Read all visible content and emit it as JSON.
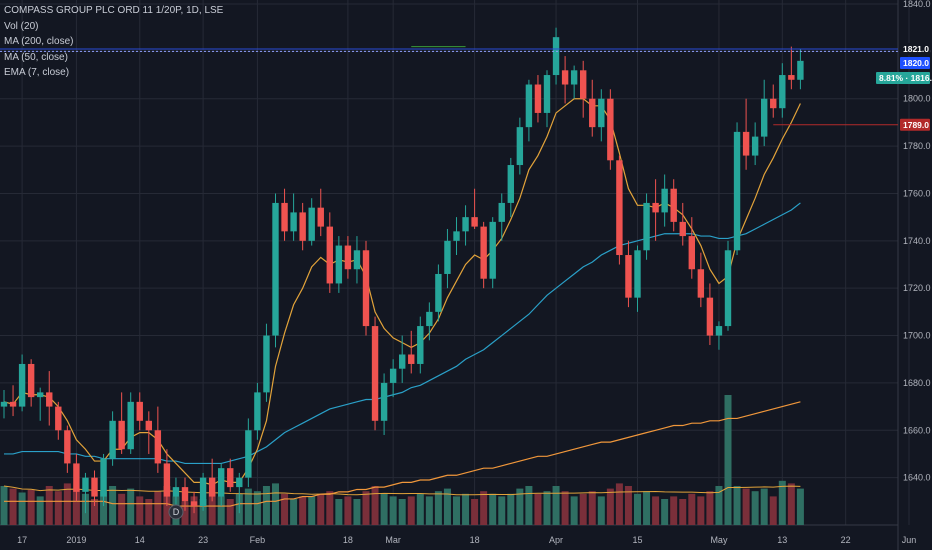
{
  "legend": {
    "title": "COMPASS GROUP PLC ORD 11 1/20P, 1D, LSE",
    "vol": "Vol (20)",
    "ma200": "MA (200, close)",
    "ma50": "MA (50, close)",
    "ema7": "EMA (7, close)"
  },
  "colors": {
    "background": "#131722",
    "grid": "#262a36",
    "up": "#26a69a",
    "down": "#ef5350",
    "vol_up": "#2f6f63",
    "vol_down": "#7a2f3a",
    "ma200": "#f0973b",
    "ma50": "#2aa0c8",
    "ema7": "#e2a33a",
    "vol_ma": "#e2a33a"
  },
  "price_tags": [
    {
      "label": "1821.0",
      "value": 1821.0,
      "color": "#131722",
      "line": "#2a4bd7"
    },
    {
      "label": "1820.0",
      "value": 1820.0,
      "color": "#1e50ff",
      "line": "#8fa0ff"
    },
    {
      "label": "8.81% · 1816.0",
      "value": 1816.0,
      "color": "#26a69a",
      "line": null
    },
    {
      "label": "1789.0",
      "value": 1789.0,
      "color": "#b22a2a",
      "line": "#b22a2a"
    }
  ],
  "dividend_marker": "D",
  "chart_data": {
    "type": "candlestick",
    "title": "COMPASS GROUP PLC ORD 11 1/20P, 1D, LSE",
    "yticks": [
      1640.0,
      1660.0,
      1680.0,
      1700.0,
      1720.0,
      1740.0,
      1760.0,
      1780.0,
      1800.0,
      1820.0,
      1840.0
    ],
    "ylim": [
      1620,
      1840
    ],
    "x_tick_labels": [
      {
        "label": "17",
        "index": 2
      },
      {
        "label": "2019",
        "index": 8
      },
      {
        "label": "14",
        "index": 15
      },
      {
        "label": "23",
        "index": 22
      },
      {
        "label": "Feb",
        "index": 28
      },
      {
        "label": "18",
        "index": 38
      },
      {
        "label": "Mar",
        "index": 43
      },
      {
        "label": "18",
        "index": 52
      },
      {
        "label": "Apr",
        "index": 61
      },
      {
        "label": "15",
        "index": 70
      },
      {
        "label": "May",
        "index": 79
      },
      {
        "label": "13",
        "index": 86
      },
      {
        "label": "22",
        "index": 93
      },
      {
        "label": "Jun",
        "index": 100
      }
    ],
    "candles": [
      [
        1670,
        1677,
        1665,
        1672
      ],
      [
        1672,
        1679,
        1666,
        1670
      ],
      [
        1670,
        1692,
        1668,
        1688
      ],
      [
        1688,
        1690,
        1670,
        1674
      ],
      [
        1674,
        1678,
        1664,
        1676
      ],
      [
        1676,
        1685,
        1662,
        1670
      ],
      [
        1670,
        1672,
        1656,
        1660
      ],
      [
        1660,
        1662,
        1642,
        1646
      ],
      [
        1646,
        1650,
        1630,
        1634
      ],
      [
        1634,
        1642,
        1625,
        1640
      ],
      [
        1640,
        1643,
        1628,
        1632
      ],
      [
        1632,
        1650,
        1628,
        1648
      ],
      [
        1648,
        1668,
        1645,
        1664
      ],
      [
        1664,
        1676,
        1650,
        1652
      ],
      [
        1652,
        1676,
        1650,
        1672
      ],
      [
        1672,
        1676,
        1660,
        1664
      ],
      [
        1664,
        1668,
        1650,
        1660
      ],
      [
        1660,
        1670,
        1642,
        1646
      ],
      [
        1646,
        1652,
        1628,
        1632
      ],
      [
        1632,
        1640,
        1624,
        1636
      ],
      [
        1636,
        1640,
        1626,
        1630
      ],
      [
        1630,
        1634,
        1625,
        1628
      ],
      [
        1628,
        1642,
        1626,
        1640
      ],
      [
        1640,
        1648,
        1630,
        1632
      ],
      [
        1632,
        1646,
        1628,
        1644
      ],
      [
        1644,
        1648,
        1634,
        1636
      ],
      [
        1636,
        1642,
        1625,
        1640
      ],
      [
        1640,
        1665,
        1636,
        1660
      ],
      [
        1660,
        1680,
        1656,
        1676
      ],
      [
        1676,
        1705,
        1672,
        1700
      ],
      [
        1700,
        1760,
        1695,
        1756
      ],
      [
        1756,
        1762,
        1740,
        1744
      ],
      [
        1744,
        1760,
        1740,
        1752
      ],
      [
        1752,
        1756,
        1736,
        1740
      ],
      [
        1740,
        1758,
        1738,
        1754
      ],
      [
        1754,
        1762,
        1742,
        1746
      ],
      [
        1746,
        1752,
        1718,
        1722
      ],
      [
        1722,
        1742,
        1718,
        1738
      ],
      [
        1738,
        1742,
        1724,
        1728
      ],
      [
        1728,
        1742,
        1722,
        1736
      ],
      [
        1736,
        1740,
        1700,
        1704
      ],
      [
        1704,
        1708,
        1660,
        1664
      ],
      [
        1664,
        1684,
        1658,
        1680
      ],
      [
        1680,
        1690,
        1674,
        1686
      ],
      [
        1686,
        1700,
        1680,
        1692
      ],
      [
        1692,
        1702,
        1684,
        1688
      ],
      [
        1688,
        1708,
        1684,
        1704
      ],
      [
        1704,
        1714,
        1698,
        1710
      ],
      [
        1710,
        1730,
        1706,
        1726
      ],
      [
        1726,
        1745,
        1720,
        1740
      ],
      [
        1740,
        1750,
        1734,
        1744
      ],
      [
        1744,
        1755,
        1738,
        1750
      ],
      [
        1750,
        1762,
        1745,
        1746
      ],
      [
        1746,
        1748,
        1720,
        1724
      ],
      [
        1724,
        1750,
        1720,
        1748
      ],
      [
        1748,
        1760,
        1740,
        1756
      ],
      [
        1756,
        1775,
        1750,
        1772
      ],
      [
        1772,
        1792,
        1768,
        1788
      ],
      [
        1788,
        1808,
        1782,
        1806
      ],
      [
        1806,
        1810,
        1790,
        1794
      ],
      [
        1794,
        1812,
        1788,
        1810
      ],
      [
        1810,
        1830,
        1806,
        1826
      ],
      [
        1812,
        1818,
        1798,
        1806
      ],
      [
        1806,
        1814,
        1800,
        1812
      ],
      [
        1812,
        1816,
        1792,
        1800
      ],
      [
        1800,
        1808,
        1784,
        1788
      ],
      [
        1788,
        1804,
        1782,
        1800
      ],
      [
        1800,
        1804,
        1770,
        1774
      ],
      [
        1774,
        1776,
        1730,
        1734
      ],
      [
        1734,
        1740,
        1712,
        1716
      ],
      [
        1716,
        1738,
        1710,
        1736
      ],
      [
        1736,
        1760,
        1732,
        1756
      ],
      [
        1756,
        1766,
        1740,
        1752
      ],
      [
        1752,
        1768,
        1746,
        1762
      ],
      [
        1762,
        1766,
        1744,
        1748
      ],
      [
        1748,
        1756,
        1738,
        1742
      ],
      [
        1742,
        1750,
        1724,
        1728
      ],
      [
        1728,
        1735,
        1712,
        1716
      ],
      [
        1716,
        1722,
        1696,
        1700
      ],
      [
        1700,
        1706,
        1694,
        1704
      ],
      [
        1704,
        1740,
        1702,
        1736
      ],
      [
        1736,
        1790,
        1734,
        1786
      ],
      [
        1786,
        1800,
        1770,
        1776
      ],
      [
        1776,
        1790,
        1772,
        1784
      ],
      [
        1784,
        1808,
        1780,
        1800
      ],
      [
        1800,
        1806,
        1792,
        1796
      ],
      [
        1796,
        1815,
        1792,
        1810
      ],
      [
        1810,
        1822,
        1804,
        1808
      ],
      [
        1808,
        1821,
        1804,
        1816
      ]
    ],
    "volume": [
      {
        "v": 0.3,
        "up": true
      },
      {
        "v": 0.28,
        "up": false
      },
      {
        "v": 0.25,
        "up": true
      },
      {
        "v": 0.27,
        "up": false
      },
      {
        "v": 0.22,
        "up": true
      },
      {
        "v": 0.3,
        "up": false
      },
      {
        "v": 0.26,
        "up": false
      },
      {
        "v": 0.32,
        "up": false
      },
      {
        "v": 0.28,
        "up": false
      },
      {
        "v": 0.24,
        "up": true
      },
      {
        "v": 0.2,
        "up": false
      },
      {
        "v": 0.26,
        "up": true
      },
      {
        "v": 0.3,
        "up": true
      },
      {
        "v": 0.24,
        "up": false
      },
      {
        "v": 0.28,
        "up": true
      },
      {
        "v": 0.22,
        "up": false
      },
      {
        "v": 0.2,
        "up": false
      },
      {
        "v": 0.26,
        "up": false
      },
      {
        "v": 0.3,
        "up": false
      },
      {
        "v": 0.22,
        "up": true
      },
      {
        "v": 0.18,
        "up": false
      },
      {
        "v": 0.22,
        "up": false
      },
      {
        "v": 0.2,
        "up": true
      },
      {
        "v": 0.24,
        "up": false
      },
      {
        "v": 0.22,
        "up": true
      },
      {
        "v": 0.2,
        "up": false
      },
      {
        "v": 0.24,
        "up": true
      },
      {
        "v": 0.28,
        "up": true
      },
      {
        "v": 0.26,
        "up": true
      },
      {
        "v": 0.3,
        "up": true
      },
      {
        "v": 0.32,
        "up": true
      },
      {
        "v": 0.24,
        "up": false
      },
      {
        "v": 0.2,
        "up": true
      },
      {
        "v": 0.22,
        "up": false
      },
      {
        "v": 0.22,
        "up": true
      },
      {
        "v": 0.24,
        "up": false
      },
      {
        "v": 0.26,
        "up": false
      },
      {
        "v": 0.2,
        "up": true
      },
      {
        "v": 0.22,
        "up": false
      },
      {
        "v": 0.2,
        "up": true
      },
      {
        "v": 0.26,
        "up": false
      },
      {
        "v": 0.3,
        "up": false
      },
      {
        "v": 0.24,
        "up": true
      },
      {
        "v": 0.22,
        "up": true
      },
      {
        "v": 0.2,
        "up": true
      },
      {
        "v": 0.22,
        "up": false
      },
      {
        "v": 0.24,
        "up": true
      },
      {
        "v": 0.22,
        "up": true
      },
      {
        "v": 0.26,
        "up": true
      },
      {
        "v": 0.28,
        "up": true
      },
      {
        "v": 0.22,
        "up": true
      },
      {
        "v": 0.24,
        "up": true
      },
      {
        "v": 0.2,
        "up": false
      },
      {
        "v": 0.26,
        "up": false
      },
      {
        "v": 0.24,
        "up": true
      },
      {
        "v": 0.22,
        "up": true
      },
      {
        "v": 0.24,
        "up": true
      },
      {
        "v": 0.28,
        "up": true
      },
      {
        "v": 0.3,
        "up": true
      },
      {
        "v": 0.24,
        "up": false
      },
      {
        "v": 0.26,
        "up": true
      },
      {
        "v": 0.3,
        "up": true
      },
      {
        "v": 0.26,
        "up": false
      },
      {
        "v": 0.22,
        "up": true
      },
      {
        "v": 0.24,
        "up": false
      },
      {
        "v": 0.26,
        "up": false
      },
      {
        "v": 0.22,
        "up": true
      },
      {
        "v": 0.28,
        "up": false
      },
      {
        "v": 0.32,
        "up": false
      },
      {
        "v": 0.3,
        "up": false
      },
      {
        "v": 0.24,
        "up": true
      },
      {
        "v": 0.26,
        "up": true
      },
      {
        "v": 0.22,
        "up": false
      },
      {
        "v": 0.2,
        "up": true
      },
      {
        "v": 0.22,
        "up": false
      },
      {
        "v": 0.2,
        "up": false
      },
      {
        "v": 0.24,
        "up": false
      },
      {
        "v": 0.22,
        "up": false
      },
      {
        "v": 0.26,
        "up": false
      },
      {
        "v": 0.3,
        "up": true
      },
      {
        "v": 1.0,
        "up": true
      },
      {
        "v": 0.3,
        "up": true
      },
      {
        "v": 0.28,
        "up": false
      },
      {
        "v": 0.26,
        "up": true
      },
      {
        "v": 0.28,
        "up": true
      },
      {
        "v": 0.22,
        "up": false
      },
      {
        "v": 0.34,
        "up": true
      },
      {
        "v": 0.32,
        "up": false
      },
      {
        "v": 0.28,
        "up": true
      }
    ],
    "ema7": [
      1672,
      1671,
      1676,
      1675,
      1675,
      1674,
      1670,
      1664,
      1656,
      1652,
      1647,
      1647,
      1652,
      1652,
      1657,
      1659,
      1659,
      1656,
      1650,
      1646,
      1642,
      1638,
      1638,
      1637,
      1639,
      1638,
      1638,
      1644,
      1652,
      1664,
      1687,
      1701,
      1713,
      1720,
      1729,
      1733,
      1730,
      1732,
      1731,
      1732,
      1725,
      1710,
      1703,
      1699,
      1697,
      1695,
      1697,
      1701,
      1707,
      1716,
      1723,
      1730,
      1734,
      1732,
      1736,
      1741,
      1749,
      1758,
      1770,
      1776,
      1784,
      1794,
      1797,
      1800,
      1800,
      1797,
      1797,
      1791,
      1777,
      1762,
      1755,
      1755,
      1754,
      1756,
      1754,
      1751,
      1745,
      1738,
      1728,
      1722,
      1725,
      1740,
      1749,
      1758,
      1768,
      1775,
      1783,
      1790,
      1798
    ],
    "ma50": [
      1650,
      1650,
      1651,
      1651,
      1651,
      1651,
      1651,
      1650,
      1650,
      1649,
      1649,
      1648,
      1648,
      1648,
      1648,
      1648,
      1648,
      1648,
      1647,
      1647,
      1646,
      1646,
      1646,
      1646,
      1646,
      1647,
      1648,
      1649,
      1651,
      1653,
      1656,
      1659,
      1661,
      1663,
      1665,
      1667,
      1669,
      1670,
      1671,
      1672,
      1673,
      1673,
      1674,
      1675,
      1676,
      1678,
      1679,
      1681,
      1683,
      1685,
      1687,
      1690,
      1692,
      1694,
      1697,
      1700,
      1703,
      1706,
      1709,
      1713,
      1717,
      1720,
      1723,
      1726,
      1729,
      1731,
      1734,
      1736,
      1738,
      1739,
      1740,
      1741,
      1742,
      1743,
      1743,
      1743,
      1743,
      1742,
      1742,
      1741,
      1741,
      1742,
      1743,
      1745,
      1747,
      1749,
      1751,
      1753,
      1756
    ],
    "ma200": [
      1630,
      1630,
      1630,
      1630,
      1630,
      1630,
      1630,
      1630,
      1630,
      1630,
      1630,
      1630,
      1629,
      1629,
      1629,
      1629,
      1629,
      1629,
      1629,
      1628,
      1628,
      1628,
      1628,
      1628,
      1628,
      1628,
      1629,
      1629,
      1629,
      1630,
      1630,
      1631,
      1631,
      1632,
      1632,
      1633,
      1633,
      1634,
      1634,
      1635,
      1635,
      1636,
      1636,
      1637,
      1638,
      1638,
      1639,
      1639,
      1640,
      1641,
      1641,
      1642,
      1643,
      1644,
      1644,
      1645,
      1646,
      1647,
      1648,
      1649,
      1649,
      1650,
      1651,
      1652,
      1653,
      1654,
      1655,
      1655,
      1656,
      1657,
      1658,
      1659,
      1660,
      1661,
      1662,
      1662,
      1663,
      1663,
      1664,
      1664,
      1665,
      1665,
      1666,
      1667,
      1668,
      1669,
      1670,
      1671,
      1672
    ]
  }
}
